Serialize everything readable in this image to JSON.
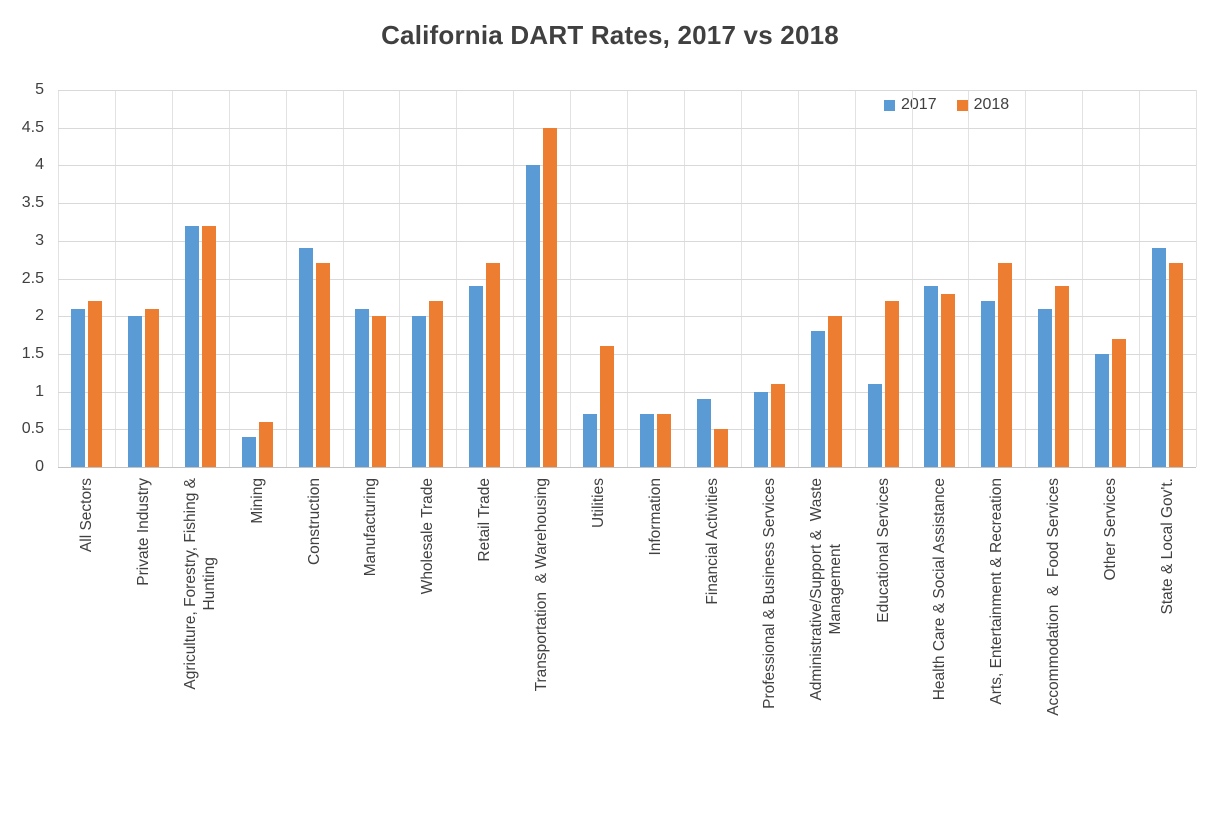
{
  "title": "California DART Rates, 2017 vs 2018",
  "legend": {
    "items": [
      {
        "label": "2017",
        "color": "#5B9BD5"
      },
      {
        "label": "2018",
        "color": "#ED7D31"
      }
    ]
  },
  "chart_data": {
    "type": "bar",
    "title": "California DART Rates, 2017 vs 2018",
    "xlabel": "",
    "ylabel": "",
    "ylim": [
      0,
      5
    ],
    "y_ticks": [
      "0",
      "0.5",
      "1",
      "1.5",
      "2",
      "2.5",
      "3",
      "3.5",
      "4",
      "4.5",
      "5"
    ],
    "grid": "horizontal-and-vertical-category-boundaries",
    "legend_position": "top-right-inside",
    "bar_colors": {
      "2017": "#5B9BD5",
      "2018": "#ED7D31"
    },
    "categories": [
      [
        "All Sectors"
      ],
      [
        "Private Industry"
      ],
      [
        "Agriculture, Forestry, Fishing &",
        "Hunting"
      ],
      [
        "Mining"
      ],
      [
        "Construction"
      ],
      [
        "Manufacturing"
      ],
      [
        "Wholesale Trade"
      ],
      [
        "Retail Trade"
      ],
      [
        "Transportation  & Warehousing"
      ],
      [
        "Utilities"
      ],
      [
        "Information"
      ],
      [
        "Financial Activities"
      ],
      [
        "Professional & Business Services"
      ],
      [
        "Administrative/Support &  Waste",
        "Management"
      ],
      [
        "Educational Services"
      ],
      [
        "Health Care & Social Assistance"
      ],
      [
        "Arts, Entertainment & Recreation"
      ],
      [
        "Accommodation  &  Food Services"
      ],
      [
        "Other Services"
      ],
      [
        "State & Local Gov't."
      ]
    ],
    "series": [
      {
        "name": "2017",
        "color": "#5B9BD5",
        "values": [
          2.1,
          2.0,
          3.2,
          0.4,
          2.9,
          2.1,
          2.0,
          2.4,
          4.0,
          0.7,
          0.7,
          0.9,
          1.0,
          1.8,
          1.1,
          2.4,
          2.2,
          2.1,
          1.5,
          2.9
        ]
      },
      {
        "name": "2018",
        "color": "#ED7D31",
        "values": [
          2.2,
          2.1,
          3.2,
          0.6,
          2.7,
          2.0,
          2.2,
          2.7,
          4.5,
          1.6,
          0.7,
          0.5,
          1.1,
          2.0,
          2.2,
          2.3,
          2.7,
          2.4,
          1.7,
          2.7
        ]
      }
    ]
  }
}
